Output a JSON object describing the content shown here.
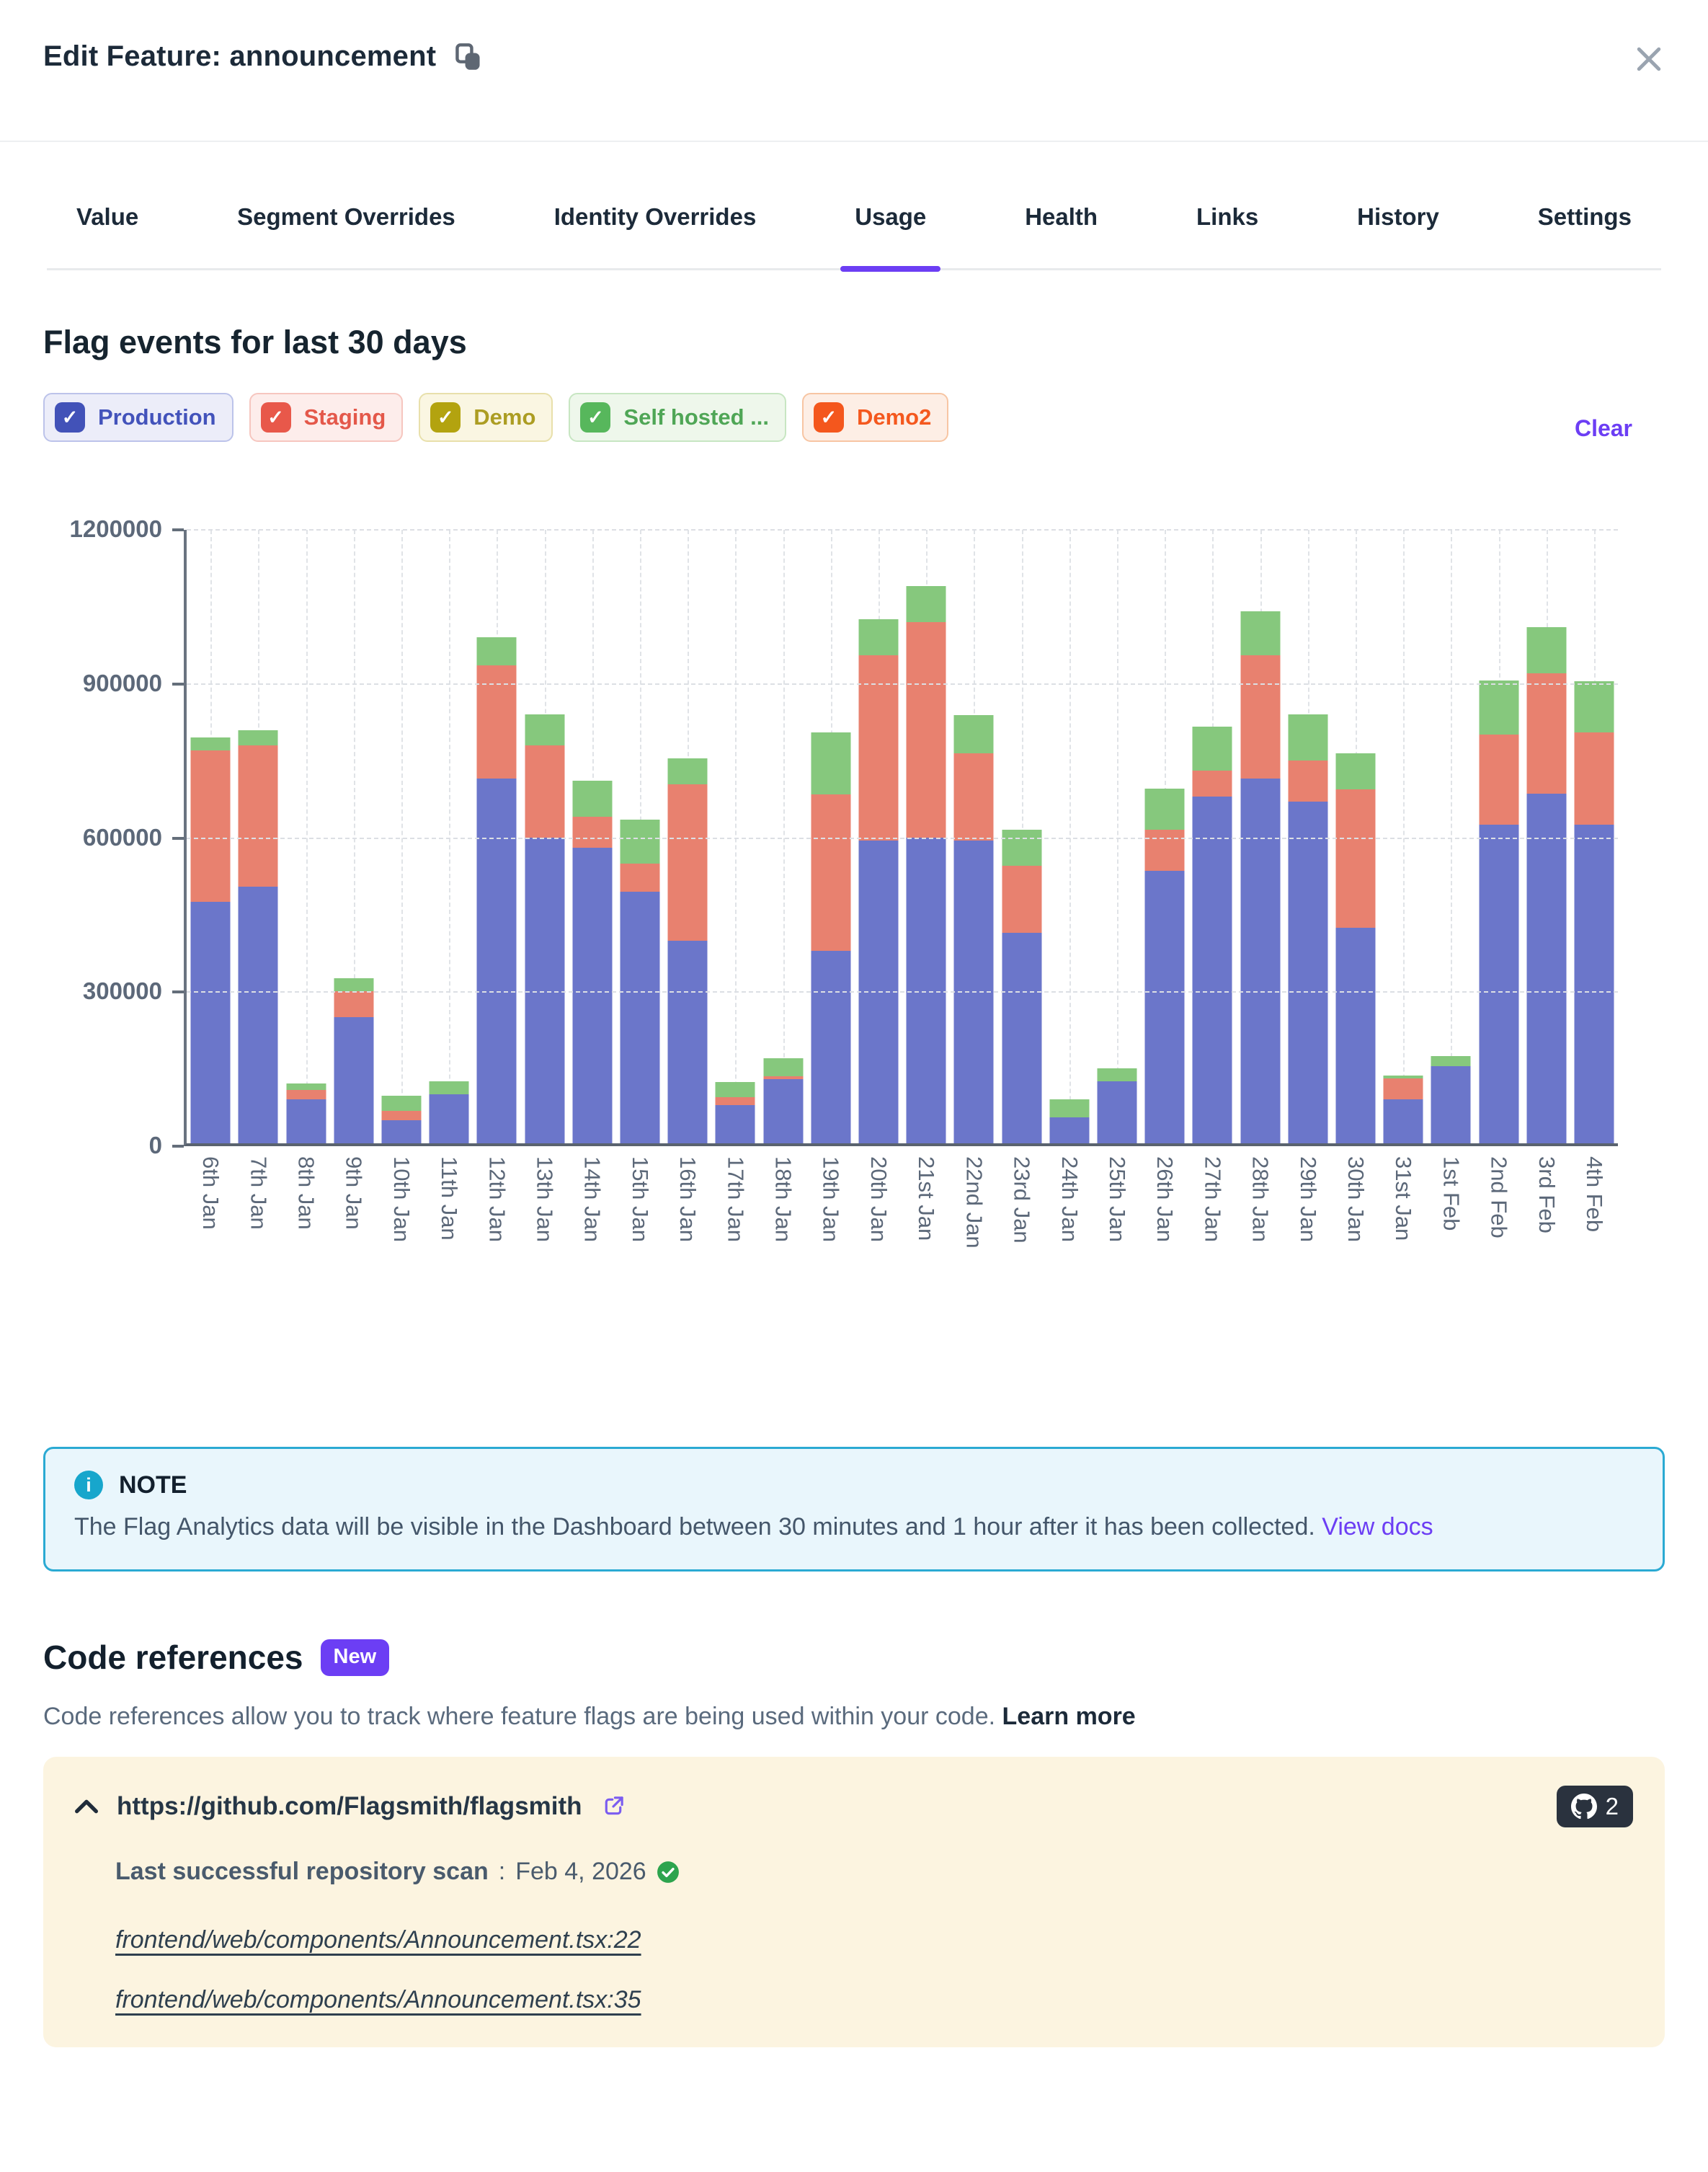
{
  "header": {
    "title": "Edit Feature: announcement"
  },
  "tabs": [
    {
      "label": "Value",
      "active": false
    },
    {
      "label": "Segment Overrides",
      "active": false
    },
    {
      "label": "Identity Overrides",
      "active": false
    },
    {
      "label": "Usage",
      "active": true
    },
    {
      "label": "Health",
      "active": false
    },
    {
      "label": "Links",
      "active": false
    },
    {
      "label": "History",
      "active": false
    },
    {
      "label": "Settings",
      "active": false
    }
  ],
  "usage": {
    "section_title": "Flag events for last 30 days",
    "clear_label": "Clear",
    "environments": [
      {
        "label": "Production",
        "checkbox_color": "#4252B8",
        "bg": "#ECEDF9",
        "border": "#BCC3EA",
        "text": "#4353BB",
        "checked": true
      },
      {
        "label": "Staging",
        "checkbox_color": "#E8584A",
        "bg": "#FDEDEB",
        "border": "#F6C6BF",
        "text": "#E4584A",
        "checked": true
      },
      {
        "label": "Demo",
        "checkbox_color": "#B3A30F",
        "bg": "#FAF6E2",
        "border": "#E8E0AB",
        "text": "#AC9D23",
        "checked": true
      },
      {
        "label": "Self hosted ...",
        "checkbox_color": "#57B75C",
        "bg": "#EEF7EB",
        "border": "#C7E6C2",
        "text": "#4FA656",
        "checked": true
      },
      {
        "label": "Demo2",
        "checkbox_color": "#F4571D",
        "bg": "#FDEEE5",
        "border": "#F7C5A3",
        "text": "#F4581E",
        "checked": true
      }
    ]
  },
  "chart_data": {
    "type": "bar",
    "stacked": true,
    "title": "Flag events for last 30 days",
    "categories": [
      "6th Jan",
      "7th Jan",
      "8th Jan",
      "9th Jan",
      "10th Jan",
      "11th Jan",
      "12th Jan",
      "13th Jan",
      "14th Jan",
      "15th Jan",
      "16th Jan",
      "17th Jan",
      "18th Jan",
      "19th Jan",
      "20th Jan",
      "21st Jan",
      "22nd Jan",
      "23rd Jan",
      "24th Jan",
      "25th Jan",
      "26th Jan",
      "27th Jan",
      "28th Jan",
      "29th Jan",
      "30th Jan",
      "31st Jan",
      "1st Feb",
      "2nd Feb",
      "3rd Feb",
      "4th Feb"
    ],
    "series": [
      {
        "name": "Production",
        "color": "#6B76CA",
        "values": [
          470000,
          500000,
          85000,
          245000,
          45000,
          95000,
          710000,
          595000,
          575000,
          490000,
          395000,
          75000,
          125000,
          375000,
          590000,
          595000,
          590000,
          410000,
          50000,
          120000,
          530000,
          675000,
          710000,
          665000,
          420000,
          85000,
          150000,
          620000,
          680000,
          620000
        ]
      },
      {
        "name": "Staging",
        "color": "#E8816F",
        "values": [
          295000,
          275000,
          18000,
          50000,
          18000,
          0,
          220000,
          180000,
          60000,
          55000,
          305000,
          15000,
          5000,
          305000,
          360000,
          420000,
          170000,
          130000,
          0,
          0,
          80000,
          50000,
          240000,
          80000,
          270000,
          40000,
          0,
          175000,
          235000,
          180000
        ]
      },
      {
        "name": "Self hosted",
        "color": "#86C87D",
        "values": [
          25000,
          30000,
          12000,
          25000,
          30000,
          25000,
          55000,
          60000,
          70000,
          85000,
          50000,
          30000,
          35000,
          120000,
          70000,
          70000,
          75000,
          70000,
          35000,
          25000,
          80000,
          85000,
          85000,
          90000,
          70000,
          5000,
          20000,
          105000,
          90000,
          100000
        ]
      }
    ],
    "xlabel": "",
    "ylabel": "",
    "ylim": [
      0,
      1200000
    ],
    "yticks": [
      0,
      300000,
      600000,
      900000,
      1200000
    ],
    "grid": "dashed horizontal at yticks, dashed vertical at each category",
    "legend_position": "none (environment filter chips above chart act as legend)"
  },
  "note": {
    "title": "NOTE",
    "body": "The Flag Analytics data will be visible in the Dashboard between 30 minutes and 1 hour after it has been collected.",
    "link_label": "View docs"
  },
  "code_references": {
    "title": "Code references",
    "badge": "New",
    "description": "Code references allow you to track where feature flags are being used within your code.",
    "learn_more_label": "Learn more",
    "repo": {
      "url": "https://github.com/Flagsmith/flagsmith",
      "count": "2",
      "scan_label": "Last successful repository scan",
      "scan_separator": ": ",
      "scan_date": "Feb 4, 2026",
      "files": [
        "frontend/web/components/Announcement.tsx:22",
        "frontend/web/components/Announcement.tsx:35"
      ]
    }
  }
}
